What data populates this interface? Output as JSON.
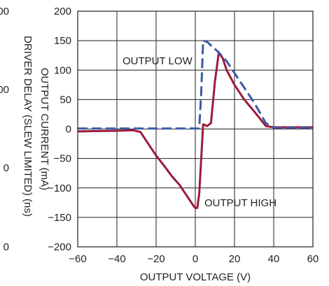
{
  "chart_data": {
    "type": "line",
    "title": "",
    "xlabel": "OUTPUT VOLTAGE (V)",
    "ylabel": "OUTPUT CURRENT (mA)",
    "secondary_ylabel": "DRIVER DELAY (SLEW LIMITED) (ns)",
    "secondary_ytick_labels": [
      "00",
      "00",
      "0",
      "0"
    ],
    "xlim": [
      -60,
      60
    ],
    "ylim": [
      -200,
      200
    ],
    "xticks": [
      -60,
      -40,
      -20,
      0,
      20,
      40,
      60
    ],
    "yticks": [
      -200,
      -150,
      -100,
      -50,
      0,
      50,
      100,
      150,
      200
    ],
    "xtick_labels": [
      "−60",
      "−40",
      "−20",
      "0",
      "20",
      "40",
      "60"
    ],
    "ytick_labels": [
      "−200",
      "−150",
      "−100",
      "−50",
      "0",
      "50",
      "100",
      "150",
      "200"
    ],
    "grid": true,
    "colors": {
      "output_high": "#9b1b3b",
      "output_low": "#3a5aa6",
      "axes": "#231f20",
      "grid": "#231f20"
    },
    "annotations": [
      {
        "text": "OUTPUT LOW",
        "series": "low"
      },
      {
        "text": "OUTPUT HIGH",
        "series": "high"
      }
    ],
    "series": [
      {
        "name": "OUTPUT HIGH",
        "style": "solid",
        "x": [
          -60,
          -40,
          -32,
          -28,
          -24,
          -20,
          -16,
          -12,
          -8,
          -5,
          -3,
          -1,
          0,
          1,
          2,
          4,
          6,
          8,
          10,
          12,
          14,
          16,
          20,
          25,
          30,
          36,
          40,
          45,
          50,
          55,
          60
        ],
        "y": [
          -4,
          -3,
          -2,
          -5,
          -25,
          -45,
          -62,
          -80,
          -95,
          -110,
          -120,
          -130,
          -134,
          -134,
          -110,
          8,
          5,
          10,
          80,
          130,
          120,
          100,
          75,
          50,
          30,
          5,
          3,
          3,
          3,
          3,
          3
        ]
      },
      {
        "name": "OUTPUT LOW",
        "style": "dashed",
        "x": [
          -60,
          -40,
          -20,
          0,
          2,
          3,
          4,
          6,
          8,
          12,
          16,
          20,
          25,
          30,
          36,
          40,
          45,
          50,
          55,
          60
        ],
        "y": [
          1,
          1,
          1,
          1,
          1,
          60,
          150,
          148,
          142,
          130,
          115,
          95,
          70,
          45,
          10,
          2,
          2,
          2,
          2,
          2
        ]
      }
    ]
  }
}
